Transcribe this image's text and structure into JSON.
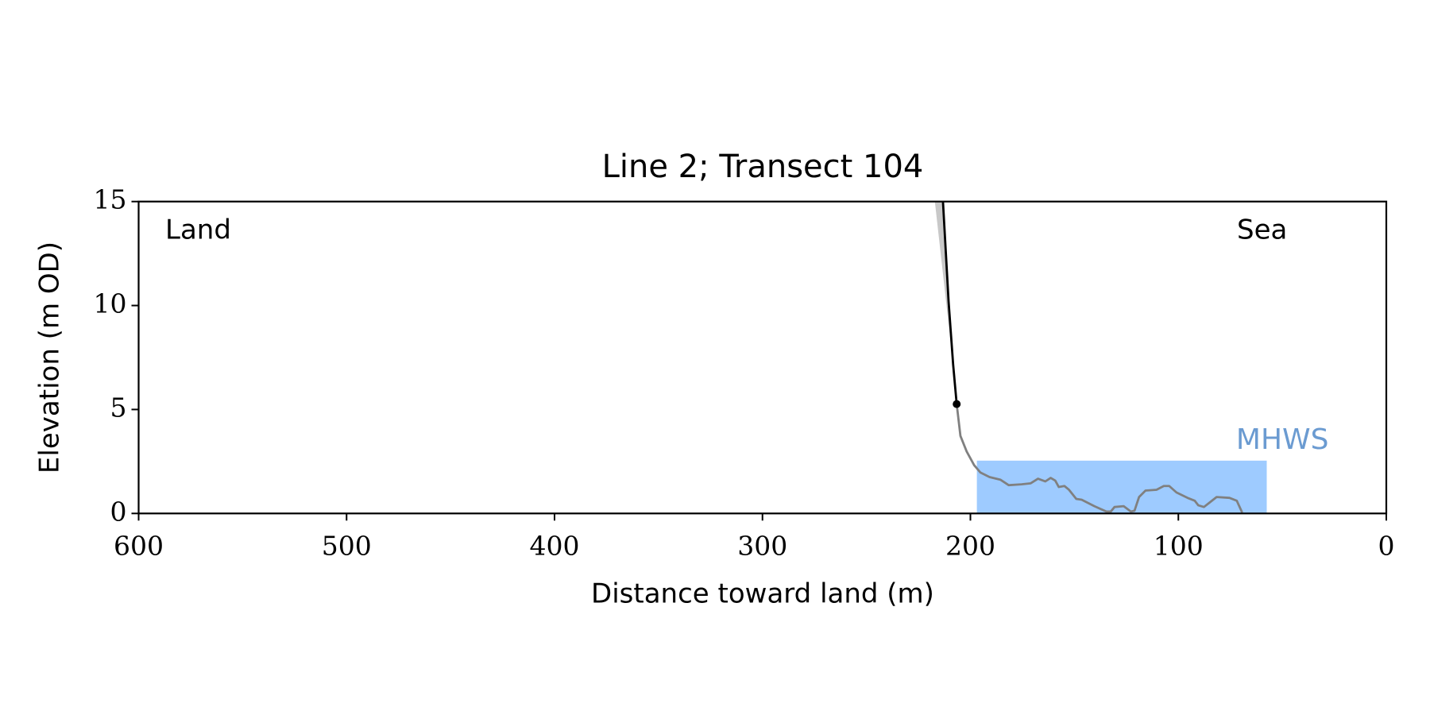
{
  "chart_data": {
    "type": "line",
    "title": "Line 2; Transect 104",
    "xlabel": "Distance toward land (m)",
    "ylabel": "Elevation (m OD)",
    "annotations": [
      "Land",
      "Sea"
    ],
    "xlim": [
      600,
      0
    ],
    "ylim": [
      0,
      15
    ],
    "xticks": [
      600,
      500,
      400,
      300,
      200,
      100,
      0
    ],
    "yticks": [
      0,
      5,
      10,
      15
    ],
    "grid": false,
    "mhws": {
      "label": "MHWS",
      "value": 2.54,
      "x": [
        196.9,
        57.5
      ],
      "color": "#9ecbff",
      "label_color": "#6b9bd1"
    },
    "shade": {
      "x": [
        217.1,
        213.2,
        210.5,
        208.3
      ],
      "values": [
        15,
        15,
        10.2,
        7.15
      ],
      "color": "#c8c8c8"
    },
    "series": [
      {
        "color": "#808080",
        "x": [
          206.6,
          204.8,
          201.8,
          198.2,
          195.2,
          190.8,
          185.5,
          181.6,
          175.4,
          171,
          167.5,
          164,
          161.4,
          159.2,
          157.5,
          154.8,
          152.6,
          149.1,
          146.5,
          140.4,
          134.6,
          132.5,
          130.7,
          126.3,
          122.8,
          121.1,
          118.9,
          115.8,
          110.5,
          107,
          104.4,
          100.9,
          95.6,
          92.1,
          90.4,
          87.7,
          81.6,
          75.4,
          71.9,
          69.3
        ],
        "values": [
          5.26,
          3.73,
          2.98,
          2.32,
          1.97,
          1.75,
          1.62,
          1.36,
          1.4,
          1.45,
          1.67,
          1.54,
          1.71,
          1.58,
          1.27,
          1.32,
          1.14,
          0.7,
          0.66,
          0.35,
          0.09,
          0.09,
          0.31,
          0.35,
          0.09,
          0.13,
          0.79,
          1.1,
          1.14,
          1.32,
          1.32,
          1.01,
          0.75,
          0.61,
          0.39,
          0.31,
          0.79,
          0.75,
          0.61,
          0.04
        ]
      },
      {
        "color": "#000000",
        "x": [
          213.2,
          210.5,
          208.3,
          206.6
        ],
        "values": [
          15,
          10.2,
          7.15,
          5.26
        ]
      },
      {
        "color": "#000000",
        "marker": true,
        "x": [
          206.6
        ],
        "values": [
          5.26
        ]
      }
    ]
  }
}
